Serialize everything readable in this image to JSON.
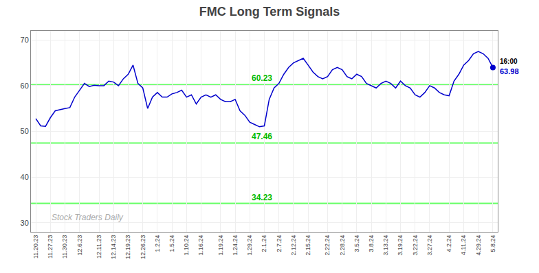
{
  "chart_data": {
    "type": "line",
    "title": "FMC Long Term Signals",
    "categories": [
      "11.20.23",
      null,
      null,
      "11.27.23",
      null,
      null,
      "11.30.23",
      null,
      null,
      "12.6.23",
      null,
      null,
      null,
      "12.11.23",
      null,
      null,
      "12.14.23",
      null,
      null,
      "12.19.23",
      null,
      null,
      "12.26.23",
      null,
      null,
      "1.2.24",
      null,
      null,
      "1.5.24",
      null,
      null,
      "1.10.24",
      null,
      null,
      "1.16.24",
      null,
      null,
      null,
      "1.19.24",
      null,
      null,
      "1.24.24",
      null,
      null,
      "1.29.24",
      null,
      null,
      "2.1.24",
      null,
      null,
      "2.7.24",
      null,
      null,
      "2.12.24",
      null,
      null,
      "2.15.24",
      null,
      null,
      null,
      "2.22.24",
      null,
      null,
      "2.28.24",
      null,
      null,
      "3.5.24",
      null,
      null,
      "3.8.24",
      null,
      null,
      "3.13.24",
      null,
      null,
      "3.19.24",
      null,
      null,
      "3.22.24",
      null,
      null,
      "3.27.24",
      null,
      null,
      null,
      "4.2.24",
      null,
      null,
      "4.11.24",
      null,
      null,
      "4.29.24",
      null,
      null,
      "5.8.24"
    ],
    "values": [
      52.8,
      51.2,
      51.1,
      53.0,
      54.5,
      54.8,
      55.0,
      55.2,
      57.5,
      59.0,
      60.5,
      59.8,
      60.1,
      60.0,
      60.0,
      61.0,
      60.8,
      60.0,
      61.5,
      62.5,
      64.5,
      60.5,
      59.5,
      55.0,
      57.5,
      58.5,
      57.5,
      57.5,
      58.2,
      58.5,
      59.0,
      57.5,
      58.0,
      56.0,
      57.5,
      58.0,
      57.5,
      58.0,
      57.0,
      56.5,
      56.5,
      57.0,
      54.5,
      53.5,
      52.0,
      51.5,
      51.0,
      51.2,
      57.0,
      59.5,
      60.5,
      62.5,
      64.0,
      65.0,
      65.5,
      66.0,
      64.5,
      63.0,
      62.0,
      61.5,
      62.0,
      63.5,
      64.0,
      63.5,
      62.0,
      61.5,
      62.5,
      62.0,
      60.5,
      60.0,
      59.5,
      60.5,
      61.0,
      60.5,
      59.5,
      61.0,
      60.0,
      59.5,
      58.0,
      57.5,
      58.5,
      60.0,
      59.5,
      58.5,
      58.0,
      57.8,
      61.0,
      62.5,
      64.5,
      65.5,
      67.0,
      67.5,
      67.0,
      66.0,
      63.98
    ],
    "value_labels": [
      null,
      null,
      null,
      null,
      null,
      null,
      null,
      null,
      null,
      null,
      null,
      null,
      null,
      null,
      null,
      null,
      null,
      null,
      null,
      null,
      null,
      null,
      null,
      null,
      null,
      null,
      null,
      null,
      null,
      null,
      null,
      null,
      null,
      null,
      null,
      null,
      null,
      null,
      null,
      null,
      null,
      null,
      null,
      null,
      null,
      null,
      null,
      null,
      null,
      null,
      null,
      null,
      null,
      null,
      null,
      null,
      null,
      null,
      null,
      null,
      null,
      null,
      null,
      null,
      null,
      null,
      null,
      null,
      null,
      null,
      null,
      null,
      null,
      null,
      null,
      null,
      null,
      null,
      null,
      null,
      null,
      null,
      null,
      null,
      null,
      null,
      null,
      null,
      null,
      null,
      null,
      null,
      null,
      null,
      "63.98"
    ],
    "color": "#0000cc",
    "hlines": [
      {
        "value": 60.23,
        "label": "60.23",
        "color": "#66ff66"
      },
      {
        "value": 47.46,
        "label": "47.46",
        "color": "#66ff66"
      },
      {
        "value": 34.23,
        "label": "34.23",
        "color": "#66ff66"
      }
    ],
    "annotations": [
      {
        "text": "Stock Traders Daily",
        "x": 3,
        "y": 29.8
      },
      {
        "text": "16:00",
        "x": 94,
        "y": 63.98
      }
    ],
    "ylim": [
      28,
      72
    ],
    "yticks": [
      30,
      40,
      50,
      60,
      70
    ],
    "grid": true
  }
}
